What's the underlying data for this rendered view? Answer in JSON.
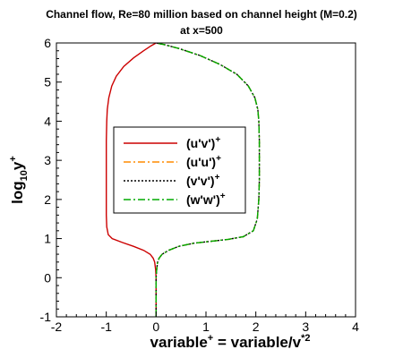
{
  "chart_data": {
    "type": "line",
    "title": "Channel flow, Re=80 million based on channel height (M=0.2)",
    "subtitle": "at x=500",
    "xlabel": {
      "main": "variable",
      "sup1": "+",
      "mid": " = variable/v",
      "sup2": "*2"
    },
    "ylabel": {
      "main": "log",
      "sub": "10",
      "end": "y",
      "sup": "+"
    },
    "xlim": [
      -2,
      4
    ],
    "ylim": [
      -1,
      6
    ],
    "xticks": [
      -2,
      -1,
      0,
      1,
      2,
      3,
      4
    ],
    "yticks": [
      -1,
      0,
      1,
      2,
      3,
      4,
      5,
      6
    ],
    "grid": false,
    "legend_position": "center",
    "series": [
      {
        "name": "(u'v')",
        "name_sup": "+",
        "color": "#cc0000",
        "dash": "solid",
        "points": [
          [
            0,
            -1
          ],
          [
            0,
            0
          ],
          [
            -0.01,
            0.2
          ],
          [
            -0.03,
            0.4
          ],
          [
            -0.06,
            0.5
          ],
          [
            -0.12,
            0.6
          ],
          [
            -0.25,
            0.7
          ],
          [
            -0.45,
            0.8
          ],
          [
            -0.68,
            0.9
          ],
          [
            -0.88,
            1.0
          ],
          [
            -0.96,
            1.1
          ],
          [
            -0.99,
            1.3
          ],
          [
            -1.0,
            1.6
          ],
          [
            -1.0,
            2.0
          ],
          [
            -1.0,
            2.5
          ],
          [
            -1.0,
            3.0
          ],
          [
            -1.0,
            3.5
          ],
          [
            -0.99,
            4.0
          ],
          [
            -0.98,
            4.3
          ],
          [
            -0.95,
            4.6
          ],
          [
            -0.89,
            4.9
          ],
          [
            -0.8,
            5.15
          ],
          [
            -0.65,
            5.4
          ],
          [
            -0.45,
            5.62
          ],
          [
            -0.25,
            5.8
          ],
          [
            -0.1,
            5.93
          ],
          [
            0,
            6.0
          ]
        ]
      },
      {
        "name": "(u'u')",
        "name_sup": "+",
        "color": "#ff8c00",
        "dash": "dashdot",
        "points": [
          [
            0,
            -1
          ],
          [
            0,
            0
          ],
          [
            0.01,
            0.2
          ],
          [
            0.03,
            0.4
          ],
          [
            0.06,
            0.5
          ],
          [
            0.12,
            0.6
          ],
          [
            0.25,
            0.7
          ],
          [
            0.45,
            0.8
          ],
          [
            0.75,
            0.88
          ],
          [
            1.1,
            0.93
          ],
          [
            1.45,
            0.98
          ],
          [
            1.75,
            1.05
          ],
          [
            1.95,
            1.2
          ],
          [
            2.03,
            1.5
          ],
          [
            2.06,
            2.0
          ],
          [
            2.07,
            2.5
          ],
          [
            2.07,
            3.0
          ],
          [
            2.07,
            3.5
          ],
          [
            2.06,
            4.0
          ],
          [
            2.04,
            4.3
          ],
          [
            1.98,
            4.6
          ],
          [
            1.85,
            4.9
          ],
          [
            1.62,
            5.2
          ],
          [
            1.28,
            5.45
          ],
          [
            0.88,
            5.68
          ],
          [
            0.45,
            5.86
          ],
          [
            0.15,
            5.96
          ],
          [
            0,
            6.0
          ]
        ]
      },
      {
        "name": "(v'v')",
        "name_sup": "+",
        "color": "#000000",
        "dash": "dotted",
        "points": [
          [
            0,
            -1
          ],
          [
            0,
            0
          ],
          [
            0.01,
            0.2
          ],
          [
            0.03,
            0.4
          ],
          [
            0.06,
            0.5
          ],
          [
            0.12,
            0.6
          ],
          [
            0.25,
            0.7
          ],
          [
            0.45,
            0.8
          ],
          [
            0.75,
            0.88
          ],
          [
            1.1,
            0.93
          ],
          [
            1.45,
            0.98
          ],
          [
            1.75,
            1.05
          ],
          [
            1.95,
            1.2
          ],
          [
            2.03,
            1.5
          ],
          [
            2.06,
            2.0
          ],
          [
            2.07,
            2.5
          ],
          [
            2.07,
            3.0
          ],
          [
            2.07,
            3.5
          ],
          [
            2.06,
            4.0
          ],
          [
            2.04,
            4.3
          ],
          [
            1.98,
            4.6
          ],
          [
            1.85,
            4.9
          ],
          [
            1.62,
            5.2
          ],
          [
            1.28,
            5.45
          ],
          [
            0.88,
            5.68
          ],
          [
            0.45,
            5.86
          ],
          [
            0.15,
            5.96
          ],
          [
            0,
            6.0
          ]
        ]
      },
      {
        "name": "(w'w')",
        "name_sup": "+",
        "color": "#00aa00",
        "dash": "dashdot",
        "points": [
          [
            0,
            -1
          ],
          [
            0,
            0
          ],
          [
            0.01,
            0.2
          ],
          [
            0.03,
            0.4
          ],
          [
            0.06,
            0.5
          ],
          [
            0.12,
            0.6
          ],
          [
            0.25,
            0.7
          ],
          [
            0.45,
            0.8
          ],
          [
            0.75,
            0.88
          ],
          [
            1.1,
            0.93
          ],
          [
            1.45,
            0.98
          ],
          [
            1.75,
            1.05
          ],
          [
            1.95,
            1.2
          ],
          [
            2.03,
            1.5
          ],
          [
            2.06,
            2.0
          ],
          [
            2.07,
            2.5
          ],
          [
            2.07,
            3.0
          ],
          [
            2.07,
            3.5
          ],
          [
            2.06,
            4.0
          ],
          [
            2.04,
            4.3
          ],
          [
            1.98,
            4.6
          ],
          [
            1.85,
            4.9
          ],
          [
            1.62,
            5.2
          ],
          [
            1.28,
            5.45
          ],
          [
            0.88,
            5.68
          ],
          [
            0.45,
            5.86
          ],
          [
            0.15,
            5.96
          ],
          [
            0,
            6.0
          ]
        ]
      }
    ]
  }
}
